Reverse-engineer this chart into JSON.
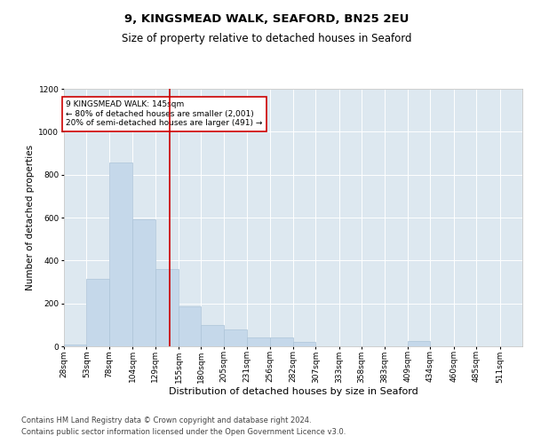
{
  "title": "9, KINGSMEAD WALK, SEAFORD, BN25 2EU",
  "subtitle": "Size of property relative to detached houses in Seaford",
  "xlabel": "Distribution of detached houses by size in Seaford",
  "ylabel": "Number of detached properties",
  "footer_line1": "Contains HM Land Registry data © Crown copyright and database right 2024.",
  "footer_line2": "Contains public sector information licensed under the Open Government Licence v3.0.",
  "annotation_title": "9 KINGSMEAD WALK: 145sqm",
  "annotation_line2": "← 80% of detached houses are smaller (2,001)",
  "annotation_line3": "20% of semi-detached houses are larger (491) →",
  "property_size": 145,
  "bin_edges": [
    28,
    53,
    78,
    104,
    129,
    155,
    180,
    205,
    231,
    256,
    282,
    307,
    333,
    358,
    383,
    409,
    434,
    460,
    485,
    511,
    536
  ],
  "bar_heights": [
    10,
    315,
    855,
    590,
    360,
    185,
    100,
    80,
    40,
    40,
    20,
    0,
    0,
    0,
    0,
    25,
    0,
    0,
    0,
    0
  ],
  "bar_color": "#c5d8ea",
  "bar_edge_color": "#adc4d8",
  "vline_color": "#cc0000",
  "vline_x": 145,
  "annotation_box_color": "#cc0000",
  "background_color": "#dde8f0",
  "ylim": [
    0,
    1200
  ],
  "yticks": [
    0,
    200,
    400,
    600,
    800,
    1000,
    1200
  ],
  "title_fontsize": 9.5,
  "subtitle_fontsize": 8.5,
  "ylabel_fontsize": 7.5,
  "xlabel_fontsize": 8,
  "tick_fontsize": 6.5,
  "annotation_fontsize": 6.5,
  "footer_fontsize": 6
}
